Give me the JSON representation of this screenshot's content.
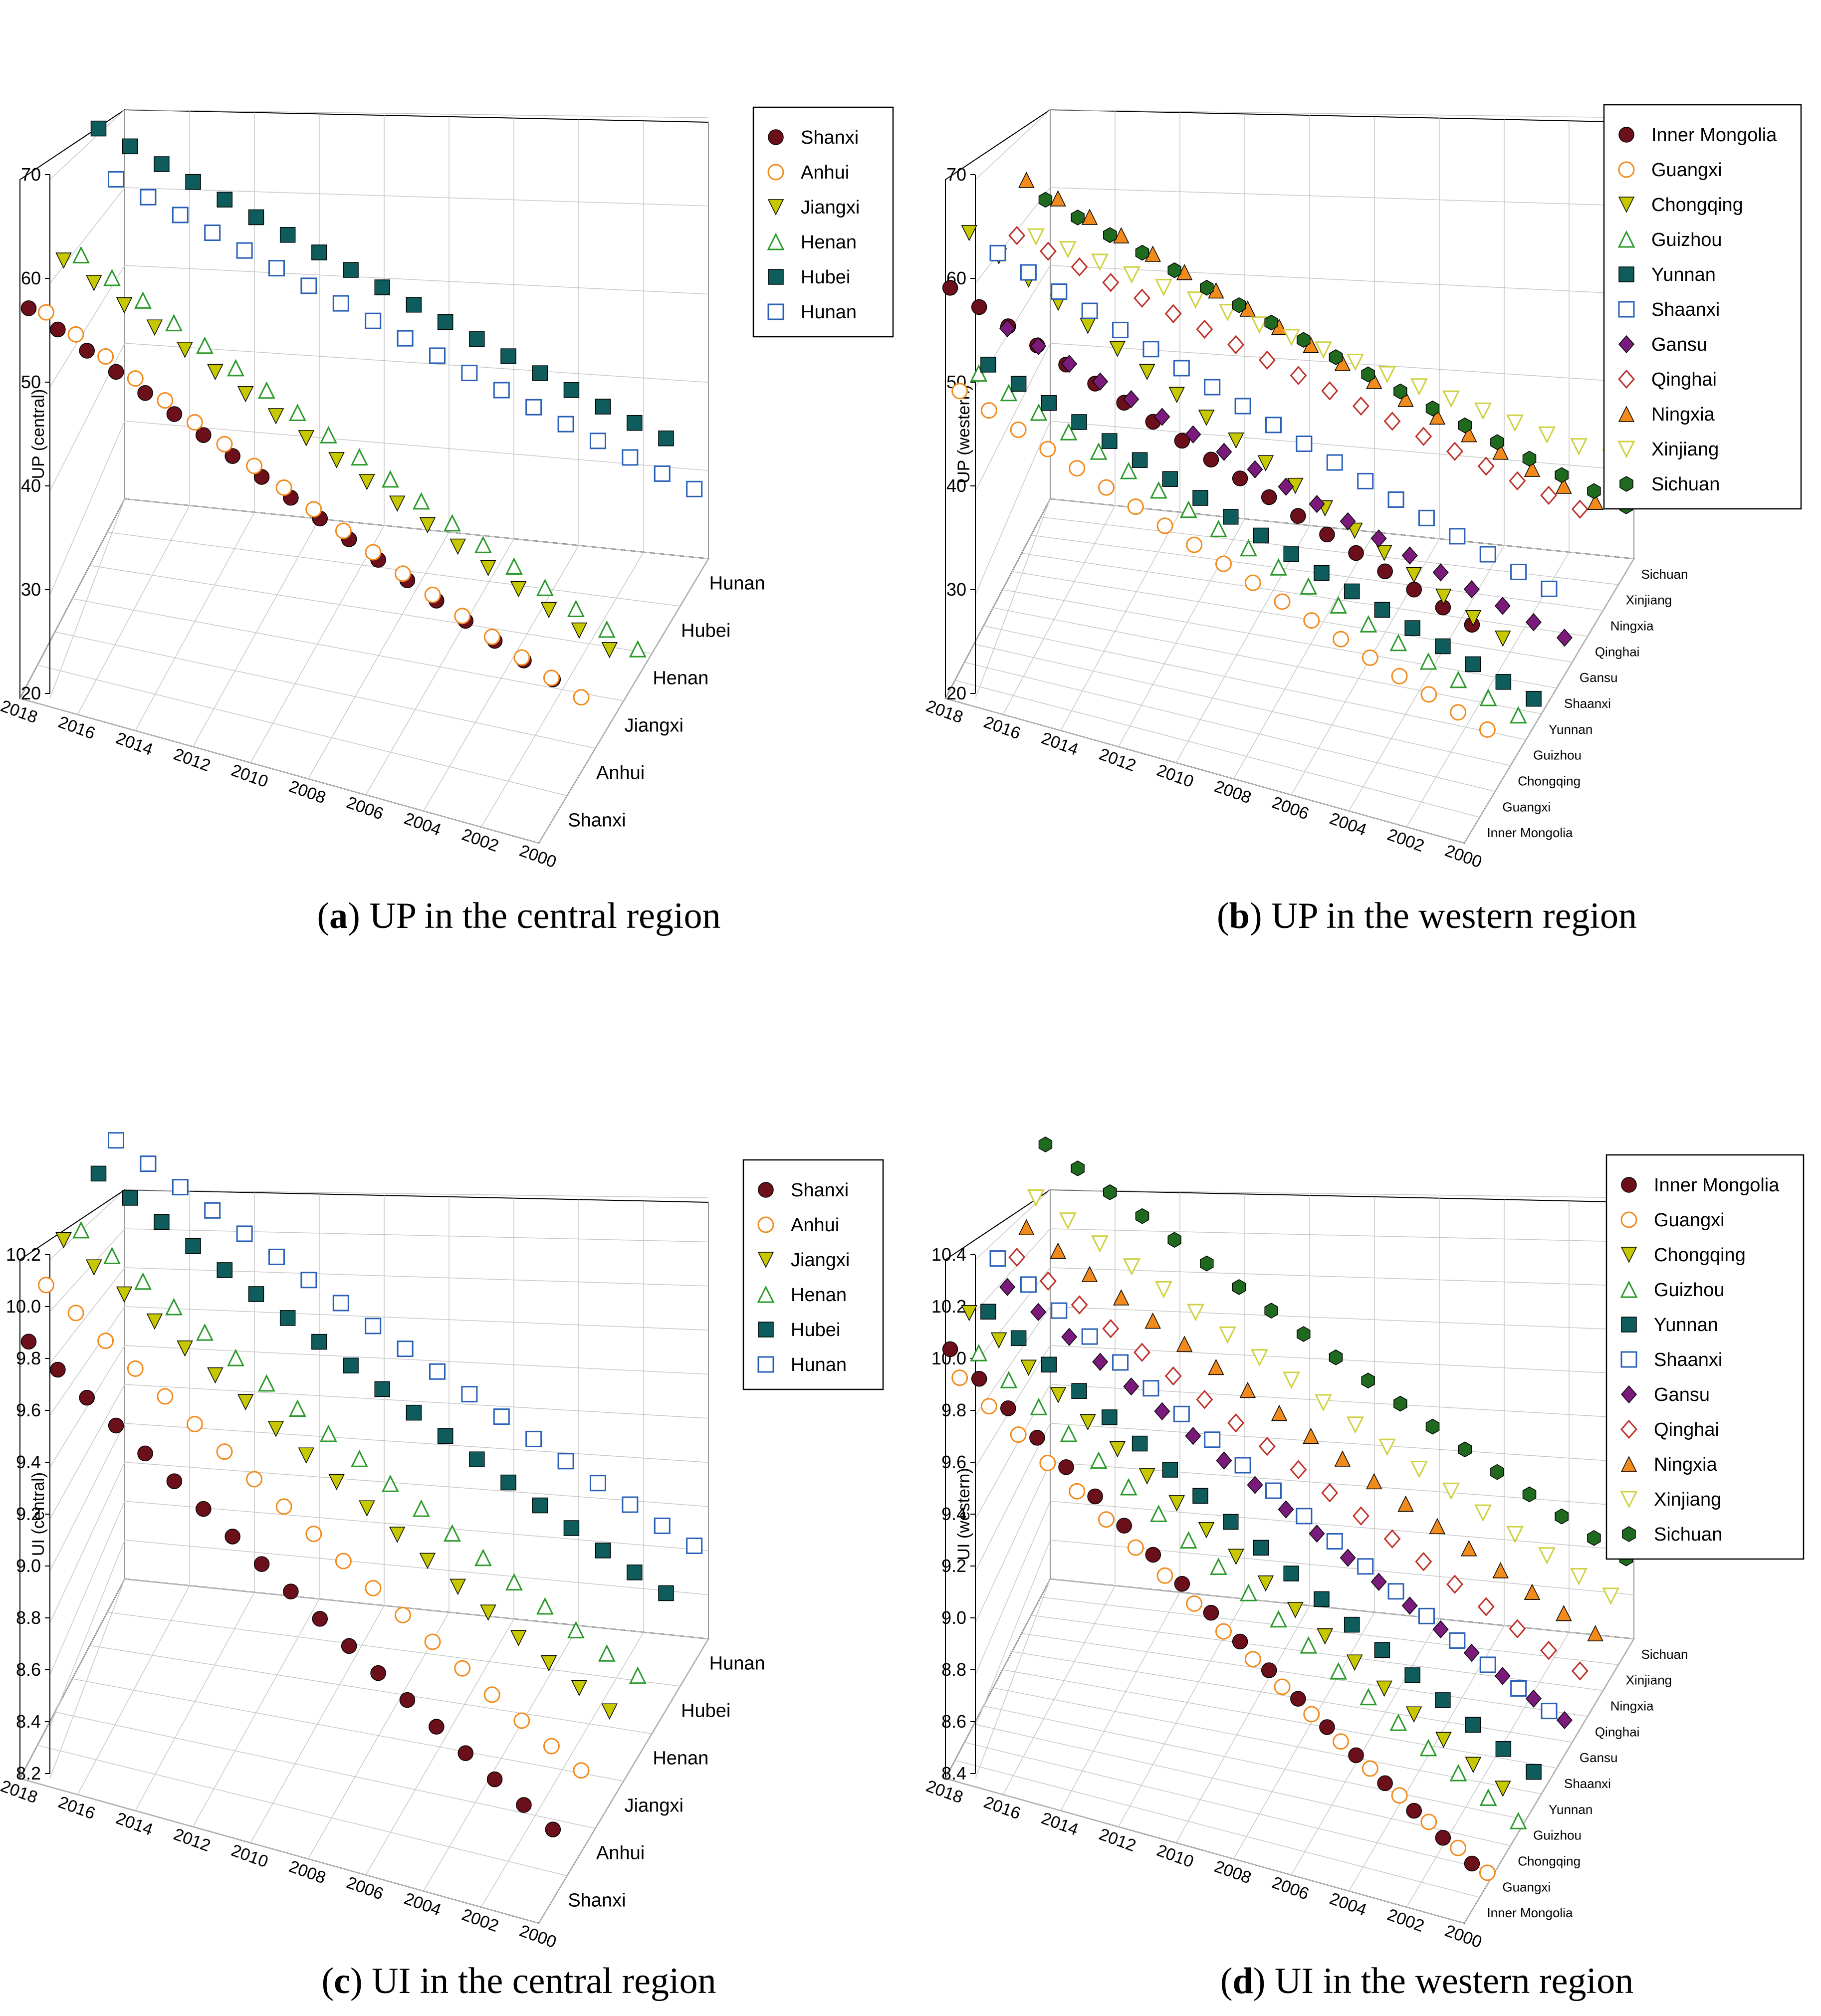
{
  "colors": {
    "Shanxi": "#6b0f1a",
    "Anhui": "#f28a1c",
    "Jiangxi": "#c7c800",
    "Henan": "#2a9a2a",
    "Hubei": "#0f5c5c",
    "Hunan": "#2860b8",
    "Inner Mongolia": "#6b0f1a",
    "Guangxi": "#f28a1c",
    "Chongqing": "#c7c800",
    "Guizhou": "#2a9a2a",
    "Yunnan": "#0f5c5c",
    "Shaanxi": "#2860b8",
    "Gansu": "#7a1a7a",
    "Qinghai": "#c0302a",
    "Ningxia": "#f28a1c",
    "Xinjiang": "#d0d040",
    "Sichuan": "#1f6a1f"
  },
  "chart_data": [
    {
      "type": "scatter",
      "caption_letter": "a",
      "caption_text": " UP in the central region",
      "ylabel": "UP (central)",
      "zlim": [
        20,
        70
      ],
      "z_ticks": [
        "20",
        "30",
        "40",
        "50",
        "60",
        "70"
      ],
      "x_ticks": [
        "2018",
        "2016",
        "2014",
        "2012",
        "2010",
        "2008",
        "2006",
        "2004",
        "2002",
        "2000"
      ],
      "years": [
        2000,
        2018
      ],
      "grid": true,
      "legend_position": "right",
      "provinces": [
        "Shanxi",
        "Anhui",
        "Jiangxi",
        "Henan",
        "Hubei",
        "Hunan"
      ],
      "series": [
        {
          "name": "Shanxi",
          "marker": "circle-filled",
          "start": 35.0,
          "end": 60.0
        },
        {
          "name": "Anhui",
          "marker": "circle-open",
          "start": 28.0,
          "end": 56.0
        },
        {
          "name": "Jiangxi",
          "marker": "triangle-down-filled",
          "start": 28.0,
          "end": 58.0
        },
        {
          "name": "Henan",
          "marker": "triangle-up-open",
          "start": 23.0,
          "end": 55.0
        },
        {
          "name": "Hubei",
          "marker": "square-filled",
          "start": 40.5,
          "end": 65.0
        },
        {
          "name": "Hunan",
          "marker": "square-open",
          "start": 30.0,
          "end": 56.0
        }
      ]
    },
    {
      "type": "scatter",
      "caption_letter": "b",
      "caption_text": " UP in the western region",
      "ylabel": "UP (western)",
      "zlim": [
        20,
        70
      ],
      "z_ticks": [
        "20",
        "30",
        "40",
        "50",
        "60",
        "70"
      ],
      "x_ticks": [
        "2018",
        "2016",
        "2014",
        "2012",
        "2010",
        "2008",
        "2006",
        "2004",
        "2002",
        "2000"
      ],
      "years": [
        2000,
        2018
      ],
      "grid": true,
      "legend_position": "right",
      "provinces": [
        "Inner Mongolia",
        "Guangxi",
        "Chongqing",
        "Guizhou",
        "Yunnan",
        "Shaanxi",
        "Gansu",
        "Qinghai",
        "Ningxia",
        "Xinjiang",
        "Sichuan"
      ],
      "series": [
        {
          "name": "Inner Mongolia",
          "marker": "circle-filled",
          "start": 42.0,
          "end": 63.0
        },
        {
          "name": "Guangxi",
          "marker": "circle-open",
          "start": 28.0,
          "end": 50.0
        },
        {
          "name": "Chongqing",
          "marker": "triangle-down-filled",
          "start": 35.0,
          "end": 65.0
        },
        {
          "name": "Guizhou",
          "marker": "triangle-up-open",
          "start": 24.0,
          "end": 48.0
        },
        {
          "name": "Yunnan",
          "marker": "square-filled",
          "start": 23.0,
          "end": 47.0
        },
        {
          "name": "Shaanxi",
          "marker": "square-open",
          "start": 32.0,
          "end": 57.0
        },
        {
          "name": "Gansu",
          "marker": "diamond-filled",
          "start": 24.0,
          "end": 47.0
        },
        {
          "name": "Qinghai",
          "marker": "diamond-open",
          "start": 35.0,
          "end": 55.0
        },
        {
          "name": "Ningxia",
          "marker": "triangle-up-filled",
          "start": 33.0,
          "end": 59.0
        },
        {
          "name": "Xinjiang",
          "marker": "triangle-down-open",
          "start": 35.0,
          "end": 51.0
        },
        {
          "name": "Sichuan",
          "marker": "hexagon-filled",
          "start": 27.0,
          "end": 53.0
        }
      ]
    },
    {
      "type": "scatter",
      "caption_letter": "c",
      "caption_text": " UI in the central region",
      "ylabel": "UI (central)",
      "zlim": [
        8.2,
        10.2
      ],
      "z_ticks": [
        "8.2",
        "8.4",
        "8.6",
        "8.8",
        "9.0",
        "9.2",
        "9.4",
        "9.6",
        "9.8",
        "10.0",
        "10.2"
      ],
      "x_ticks": [
        "2018",
        "2016",
        "2014",
        "2012",
        "2010",
        "2008",
        "2006",
        "2004",
        "2002",
        "2000"
      ],
      "years": [
        2000,
        2018
      ],
      "grid": true,
      "legend_position": "right",
      "provinces": [
        "Shanxi",
        "Anhui",
        "Jiangxi",
        "Henan",
        "Hubei",
        "Hunan"
      ],
      "series": [
        {
          "name": "Shanxi",
          "marker": "circle-filled",
          "start": 8.5,
          "end": 10.0
        },
        {
          "name": "Anhui",
          "marker": "circle-open",
          "start": 8.55,
          "end": 10.1
        },
        {
          "name": "Jiangxi",
          "marker": "triangle-down-filled",
          "start": 8.6,
          "end": 10.15
        },
        {
          "name": "Henan",
          "marker": "triangle-up-open",
          "start": 8.55,
          "end": 10.05
        },
        {
          "name": "Hubei",
          "marker": "square-filled",
          "start": 8.7,
          "end": 10.15
        },
        {
          "name": "Hunan",
          "marker": "square-open",
          "start": 8.7,
          "end": 10.15
        }
      ]
    },
    {
      "type": "scatter",
      "caption_letter": "d",
      "caption_text": " UI in the western region",
      "ylabel": "UI (western)",
      "zlim": [
        8.4,
        10.4
      ],
      "z_ticks": [
        "8.4",
        "8.6",
        "8.8",
        "9.0",
        "9.2",
        "9.4",
        "9.6",
        "9.8",
        "10.0",
        "10.2",
        "10.4"
      ],
      "x_ticks": [
        "2018",
        "2016",
        "2014",
        "2012",
        "2010",
        "2008",
        "2006",
        "2004",
        "2002",
        "2000"
      ],
      "years": [
        2000,
        2018
      ],
      "grid": true,
      "legend_position": "right",
      "provinces": [
        "Inner Mongolia",
        "Guangxi",
        "Chongqing",
        "Guizhou",
        "Yunnan",
        "Shaanxi",
        "Gansu",
        "Qinghai",
        "Ningxia",
        "Xinjiang",
        "Sichuan"
      ],
      "series": [
        {
          "name": "Inner Mongolia",
          "marker": "circle-filled",
          "start": 8.6,
          "end": 10.2
        },
        {
          "name": "Guangxi",
          "marker": "circle-open",
          "start": 8.45,
          "end": 10.0
        },
        {
          "name": "Chongqing",
          "marker": "triangle-down-filled",
          "start": 8.7,
          "end": 10.2
        },
        {
          "name": "Guizhou",
          "marker": "triangle-up-open",
          "start": 8.45,
          "end": 9.95
        },
        {
          "name": "Yunnan",
          "marker": "square-filled",
          "start": 8.55,
          "end": 10.05
        },
        {
          "name": "Shaanxi",
          "marker": "square-open",
          "start": 8.7,
          "end": 10.2
        },
        {
          "name": "Gansu",
          "marker": "diamond-filled",
          "start": 8.55,
          "end": 10.0
        },
        {
          "name": "Qinghai",
          "marker": "diamond-open",
          "start": 8.65,
          "end": 10.05
        },
        {
          "name": "Ningxia",
          "marker": "triangle-up-filled",
          "start": 8.7,
          "end": 10.1
        },
        {
          "name": "Xinjiang",
          "marker": "triangle-down-open",
          "start": 8.75,
          "end": 10.15
        },
        {
          "name": "Sichuan",
          "marker": "hexagon-filled",
          "start": 8.8,
          "end": 10.3
        }
      ]
    }
  ]
}
